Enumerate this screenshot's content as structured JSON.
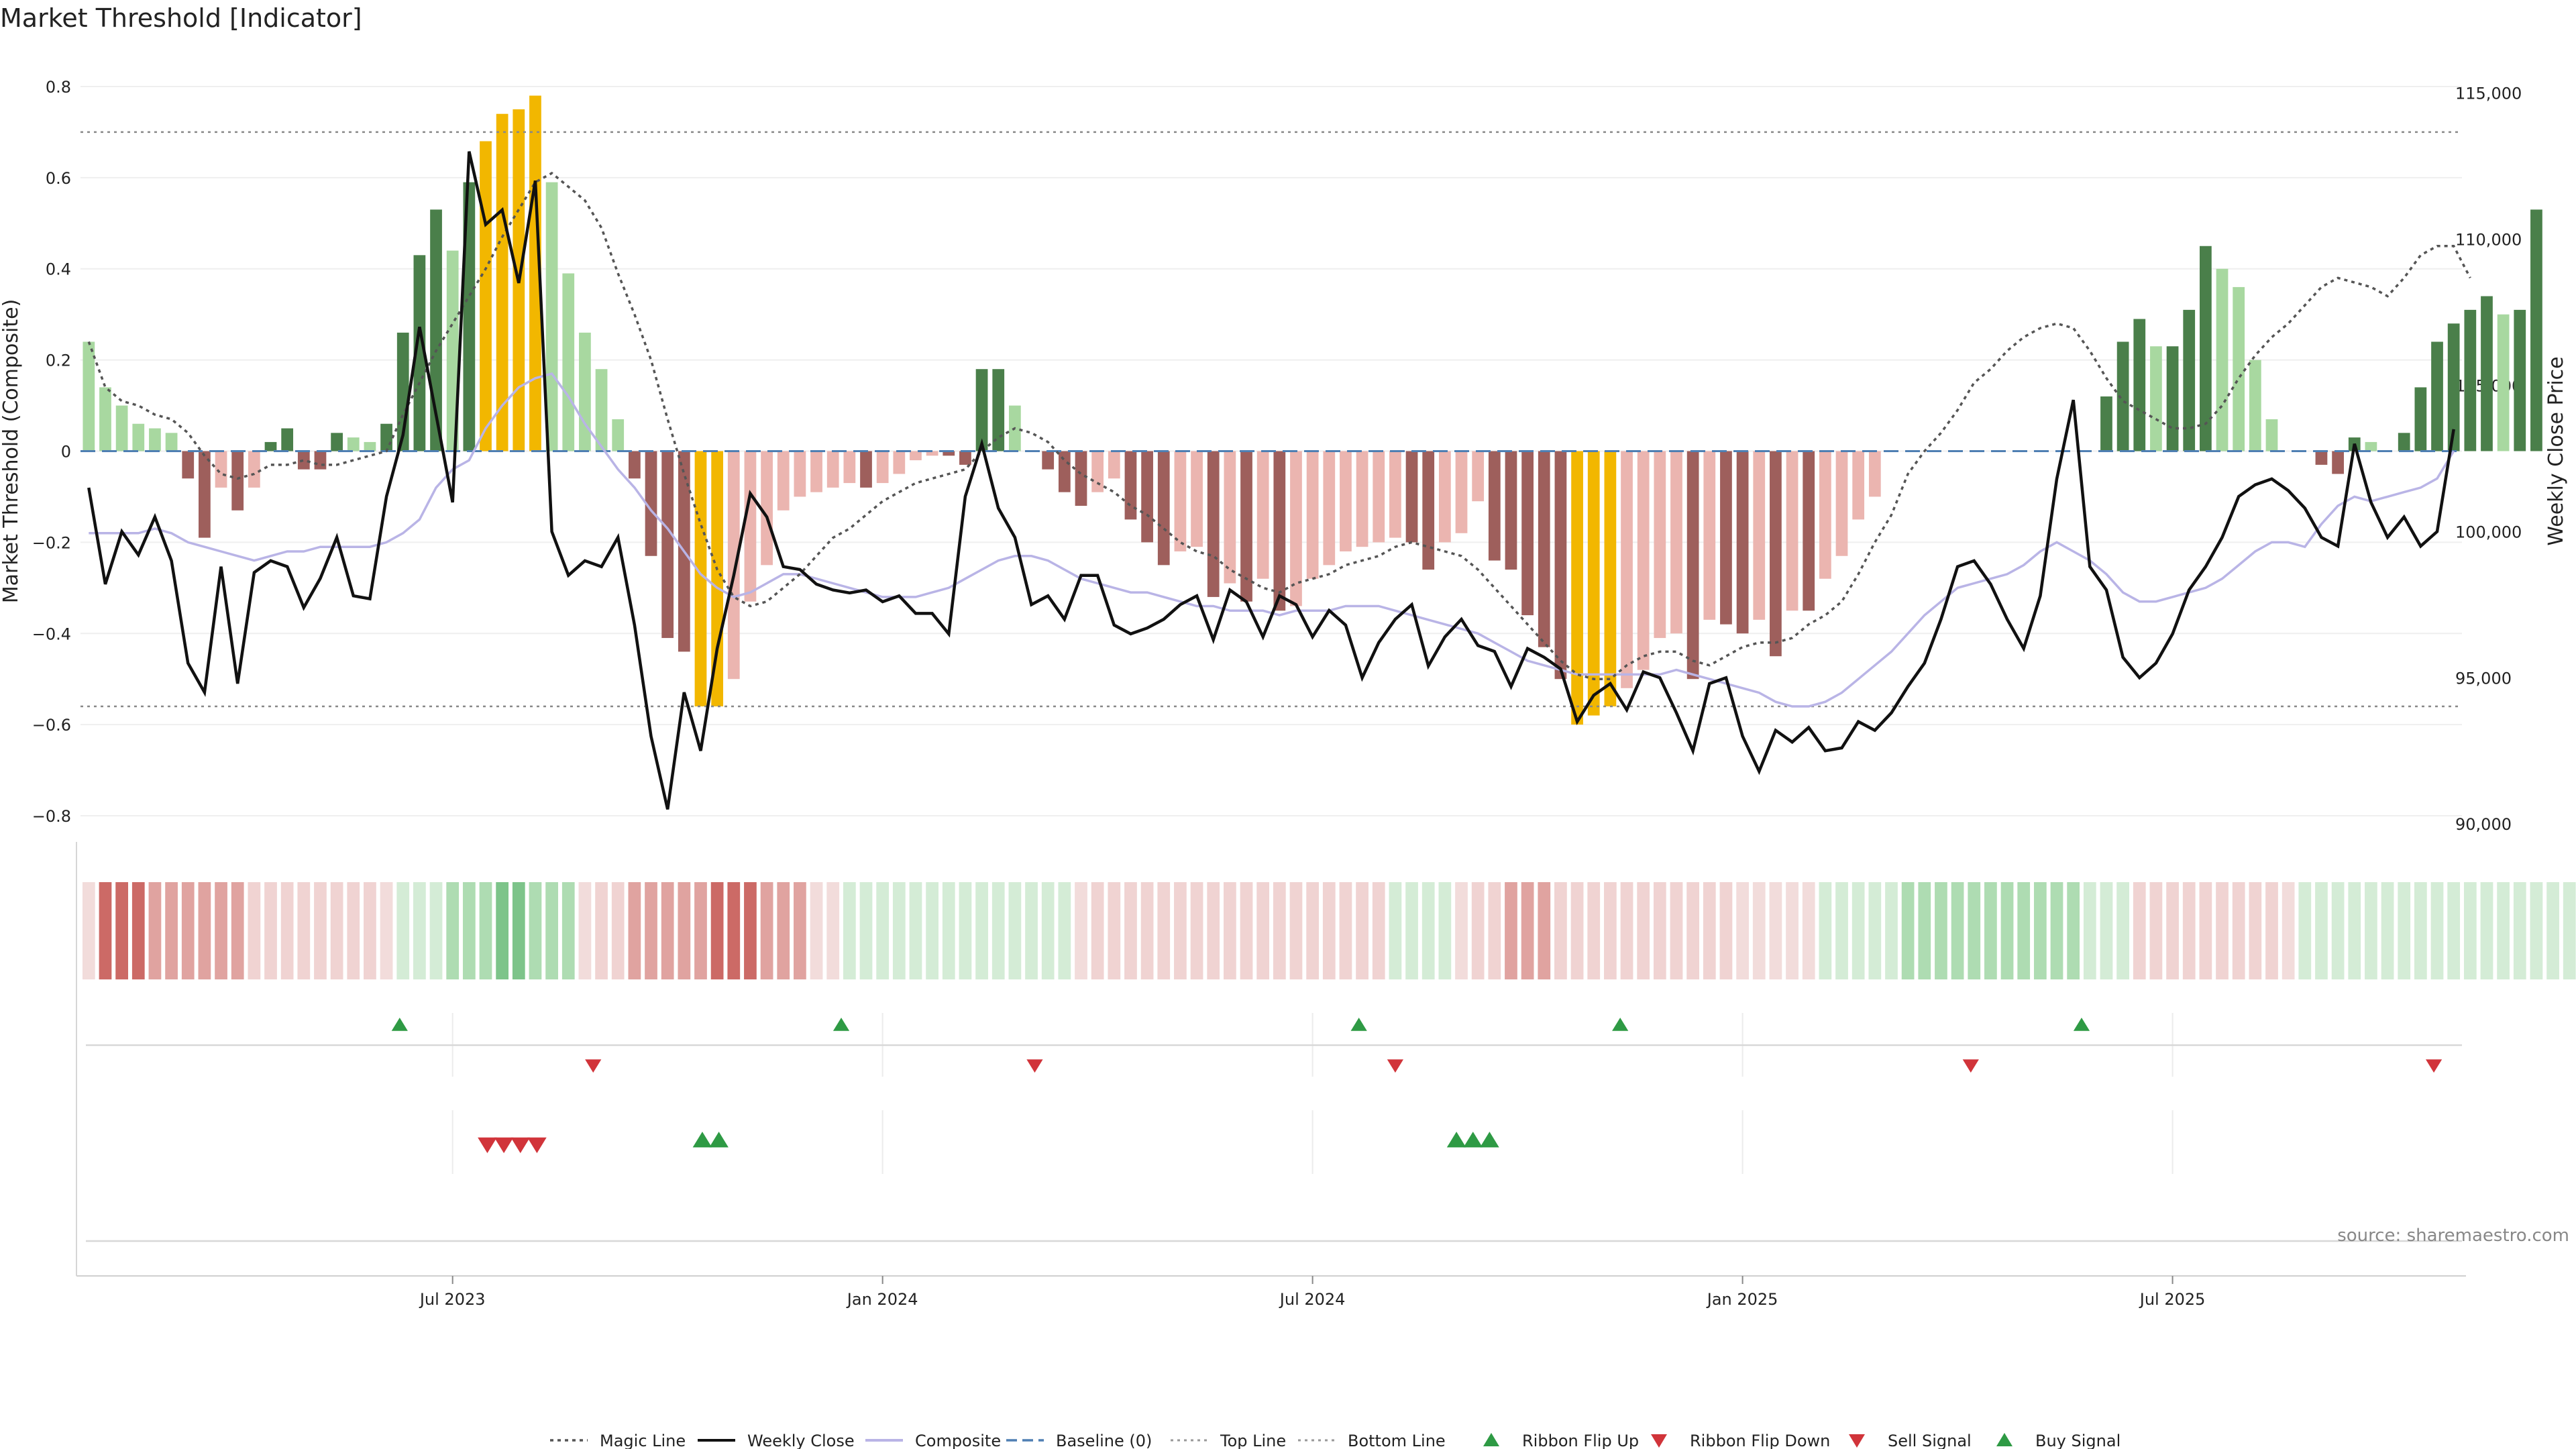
{
  "title": "Market Threshold [Indicator]",
  "source_text": "source: sharemaestro.com",
  "colors": {
    "bull_dark": "#4a7f4a",
    "bull_light": "#a8d8a0",
    "bear_dark": "#9e5f5c",
    "bear_light": "#ebb5b0",
    "extreme": "#f2b700",
    "weekly_close": "#111111",
    "composite": "#b9b4e6",
    "magic": "#555555",
    "baseline": "#4f7fb3",
    "threshold": "#999999",
    "up_marker": "#2e9a44",
    "down_marker": "#d1343a"
  },
  "chart_data": {
    "type": "bar",
    "title": "Market Threshold [Indicator]",
    "ylabel_left": "Market Threshold (Composite)",
    "ylabel_right": "Weekly Close Price",
    "ylim_left": [
      -0.85,
      0.85
    ],
    "ylim_right": [
      89500,
      116000
    ],
    "left_ticks": [
      "0.8",
      "0.6",
      "0.4",
      "0.2",
      "0",
      "−0.2",
      "−0.4",
      "−0.6",
      "−0.8"
    ],
    "left_tick_values": [
      0.8,
      0.6,
      0.4,
      0.2,
      0,
      -0.2,
      -0.4,
      -0.6,
      -0.8
    ],
    "right_ticks": [
      "115,000",
      "110,000",
      "105,000",
      "100,000",
      "95,000",
      "90,000"
    ],
    "right_tick_values": [
      115000,
      110000,
      105000,
      100000,
      95000,
      90000
    ],
    "x_tick_labels": [
      "Jul 2023",
      "Jan 2024",
      "Jul 2024",
      "Jan 2025",
      "Jul 2025"
    ],
    "x_tick_weeks": [
      22,
      48,
      74,
      100,
      126
    ],
    "top_line": 0.7,
    "bottom_line": -0.56,
    "grid": true,
    "legend_position": "bottom",
    "week_count": 144,
    "composite_bars": [
      0.24,
      0.14,
      0.1,
      0.06,
      0.05,
      0.04,
      -0.06,
      -0.19,
      -0.08,
      -0.13,
      -0.08,
      0.02,
      0.05,
      -0.04,
      -0.04,
      0.04,
      0.03,
      0.02,
      0.06,
      0.26,
      0.43,
      0.53,
      0.44,
      0.59,
      0.68,
      0.74,
      0.75,
      0.78,
      0.59,
      0.39,
      0.26,
      0.18,
      0.07,
      -0.06,
      -0.23,
      -0.41,
      -0.44,
      -0.56,
      -0.56,
      -0.5,
      -0.33,
      -0.25,
      -0.13,
      -0.1,
      -0.09,
      -0.08,
      -0.07,
      -0.08,
      -0.07,
      -0.05,
      -0.02,
      -0.01,
      -0.01,
      -0.03,
      0.18,
      0.18,
      0.1,
      0.0,
      -0.04,
      -0.09,
      -0.12,
      -0.09,
      -0.06,
      -0.15,
      -0.2,
      -0.25,
      -0.22,
      -0.21,
      -0.32,
      -0.29,
      -0.33,
      -0.28,
      -0.35,
      -0.34,
      -0.28,
      -0.25,
      -0.22,
      -0.21,
      -0.2,
      -0.19,
      -0.2,
      -0.26,
      -0.2,
      -0.18,
      -0.11,
      -0.24,
      -0.26,
      -0.36,
      -0.43,
      -0.5,
      -0.6,
      -0.58,
      -0.56,
      -0.52,
      -0.48,
      -0.41,
      -0.4,
      -0.5,
      -0.37,
      -0.38,
      -0.4,
      -0.37,
      -0.45,
      -0.35,
      -0.35,
      -0.28,
      -0.23,
      -0.15,
      -0.1,
      0.0,
      0.0,
      0.0,
      0.0,
      0.0,
      0.0,
      0.0,
      0.0,
      0.0,
      0.0,
      0.0,
      0.0,
      0.0,
      0.12,
      0.24,
      0.29,
      0.23,
      0.23,
      0.31,
      0.45,
      0.4,
      0.36,
      0.2,
      0.07,
      0.0,
      0.0,
      -0.03,
      -0.05,
      0.03,
      0.02,
      0.0,
      0.04,
      0.14,
      0.24,
      0.28,
      0.31,
      0.34,
      0.3,
      0.31,
      0.53
    ],
    "weekly_close": [
      101500,
      98200,
      100000,
      99200,
      100500,
      99000,
      95500,
      94500,
      98800,
      94800,
      98600,
      99000,
      98800,
      97400,
      98400,
      99800,
      97800,
      97700,
      101200,
      103300,
      107000,
      104000,
      101000,
      113000,
      110500,
      111000,
      108500,
      112000,
      100000,
      98500,
      99000,
      98800,
      99800,
      96800,
      93000,
      90500,
      94500,
      92500,
      96000,
      98500,
      101300,
      100500,
      98800,
      98700,
      98200,
      98000,
      97900,
      98000,
      97600,
      97800,
      97200,
      97200,
      96500,
      101200,
      103000,
      100800,
      99800,
      97500,
      97800,
      97000,
      98500,
      98500,
      96800,
      96500,
      96700,
      97000,
      97500,
      97800,
      96300,
      98000,
      97600,
      96400,
      97800,
      97500,
      96400,
      97300,
      96800,
      95000,
      96200,
      97000,
      97500,
      95400,
      96400,
      97000,
      96100,
      95900,
      94700,
      96000,
      95700,
      95300,
      93500,
      94400,
      94800,
      93900,
      95200,
      95000,
      93800,
      92500,
      94800,
      95000,
      93000,
      91800,
      93200,
      92800,
      93300,
      92500,
      92600,
      93500,
      93200,
      93800,
      94700,
      95500,
      97000,
      98800,
      99000,
      98200,
      97000,
      96000,
      97800,
      101800,
      104500,
      98800,
      98000,
      95700,
      95000,
      95500,
      96500,
      98000,
      98800,
      99800,
      101200,
      101600,
      101800,
      101400,
      100800,
      99800,
      99500,
      103000,
      101000,
      99800,
      100500,
      99500,
      100000,
      103500
    ],
    "composite_line": [
      -0.18,
      -0.18,
      -0.18,
      -0.18,
      -0.17,
      -0.18,
      -0.2,
      -0.21,
      -0.22,
      -0.23,
      -0.24,
      -0.23,
      -0.22,
      -0.22,
      -0.21,
      -0.21,
      -0.21,
      -0.21,
      -0.2,
      -0.18,
      -0.15,
      -0.08,
      -0.04,
      -0.02,
      0.05,
      0.1,
      0.14,
      0.16,
      0.17,
      0.12,
      0.06,
      0.01,
      -0.04,
      -0.08,
      -0.13,
      -0.17,
      -0.22,
      -0.27,
      -0.3,
      -0.32,
      -0.31,
      -0.29,
      -0.27,
      -0.27,
      -0.28,
      -0.29,
      -0.3,
      -0.31,
      -0.32,
      -0.32,
      -0.32,
      -0.31,
      -0.3,
      -0.28,
      -0.26,
      -0.24,
      -0.23,
      -0.23,
      -0.24,
      -0.26,
      -0.28,
      -0.29,
      -0.3,
      -0.31,
      -0.31,
      -0.32,
      -0.33,
      -0.34,
      -0.34,
      -0.35,
      -0.35,
      -0.35,
      -0.36,
      -0.35,
      -0.35,
      -0.35,
      -0.34,
      -0.34,
      -0.34,
      -0.35,
      -0.36,
      -0.37,
      -0.38,
      -0.39,
      -0.4,
      -0.42,
      -0.44,
      -0.46,
      -0.47,
      -0.48,
      -0.49,
      -0.49,
      -0.49,
      -0.49,
      -0.49,
      -0.49,
      -0.48,
      -0.49,
      -0.5,
      -0.51,
      -0.52,
      -0.53,
      -0.55,
      -0.56,
      -0.56,
      -0.55,
      -0.53,
      -0.5,
      -0.47,
      -0.44,
      -0.4,
      -0.36,
      -0.33,
      -0.3,
      -0.29,
      -0.28,
      -0.27,
      -0.25,
      -0.22,
      -0.2,
      -0.22,
      -0.24,
      -0.27,
      -0.31,
      -0.33,
      -0.33,
      -0.32,
      -0.31,
      -0.3,
      -0.28,
      -0.25,
      -0.22,
      -0.2,
      -0.2,
      -0.21,
      -0.16,
      -0.12,
      -0.1,
      -0.11,
      -0.1,
      -0.09,
      -0.08,
      -0.06,
      0.0
    ],
    "magic_line": [
      0.24,
      0.14,
      0.11,
      0.1,
      0.08,
      0.07,
      0.04,
      -0.01,
      -0.05,
      -0.06,
      -0.05,
      -0.03,
      -0.03,
      -0.02,
      -0.03,
      -0.03,
      -0.02,
      -0.01,
      0.0,
      0.08,
      0.15,
      0.22,
      0.28,
      0.34,
      0.4,
      0.47,
      0.53,
      0.59,
      0.61,
      0.58,
      0.55,
      0.49,
      0.39,
      0.3,
      0.2,
      0.07,
      -0.05,
      -0.16,
      -0.26,
      -0.32,
      -0.34,
      -0.33,
      -0.3,
      -0.27,
      -0.23,
      -0.19,
      -0.17,
      -0.14,
      -0.11,
      -0.09,
      -0.07,
      -0.06,
      -0.05,
      -0.04,
      0.0,
      0.03,
      0.05,
      0.04,
      0.02,
      -0.02,
      -0.05,
      -0.07,
      -0.09,
      -0.12,
      -0.14,
      -0.17,
      -0.2,
      -0.22,
      -0.23,
      -0.26,
      -0.28,
      -0.3,
      -0.31,
      -0.29,
      -0.28,
      -0.27,
      -0.25,
      -0.24,
      -0.23,
      -0.21,
      -0.2,
      -0.21,
      -0.22,
      -0.23,
      -0.26,
      -0.3,
      -0.34,
      -0.38,
      -0.42,
      -0.46,
      -0.49,
      -0.5,
      -0.5,
      -0.47,
      -0.45,
      -0.44,
      -0.44,
      -0.46,
      -0.47,
      -0.45,
      -0.43,
      -0.42,
      -0.42,
      -0.41,
      -0.38,
      -0.36,
      -0.33,
      -0.27,
      -0.2,
      -0.14,
      -0.05,
      0.0,
      0.04,
      0.09,
      0.15,
      0.18,
      0.22,
      0.25,
      0.27,
      0.28,
      0.27,
      0.22,
      0.16,
      0.11,
      0.09,
      0.07,
      0.05,
      0.05,
      0.06,
      0.1,
      0.16,
      0.21,
      0.25,
      0.28,
      0.32,
      0.36,
      0.38,
      0.37,
      0.36,
      0.34,
      0.38,
      0.43,
      0.45,
      0.45,
      0.38
    ],
    "ribbon_levels": [
      0,
      -3,
      -3,
      -3,
      -2,
      -2,
      -2,
      -2,
      -2,
      -2,
      -1,
      -1,
      -1,
      -1,
      -1,
      -1,
      -1,
      -1,
      0,
      1,
      1,
      1,
      2,
      2,
      2,
      3,
      3,
      2,
      2,
      2,
      0,
      -1,
      -1,
      -2,
      -2,
      -2,
      -2,
      -2,
      -3,
      -3,
      -3,
      -2,
      -2,
      -2,
      0,
      0,
      1,
      1,
      1,
      1,
      1,
      1,
      1,
      1,
      1,
      1,
      1,
      1,
      1,
      1,
      0,
      -1,
      -1,
      -1,
      -1,
      -1,
      -1,
      -1,
      -1,
      -1,
      -1,
      -1,
      -1,
      -1,
      -1,
      -1,
      -1,
      -1,
      -1,
      1,
      1,
      1,
      1,
      0,
      -1,
      -1,
      -2,
      -2,
      -2,
      -1,
      -1,
      -1,
      -1,
      -1,
      -1,
      -1,
      -1,
      -1,
      -1,
      -1,
      0,
      0,
      0,
      0,
      0,
      1,
      1,
      1,
      1,
      1,
      2,
      2,
      2,
      2,
      2,
      2,
      2,
      2,
      2,
      2,
      2,
      1,
      1,
      1,
      -1,
      -1,
      -1,
      -1,
      -1,
      -1,
      -1,
      -1,
      -1,
      0,
      1,
      1,
      1,
      1,
      1,
      1,
      1,
      1,
      1,
      1,
      1,
      1,
      1,
      1,
      1,
      1,
      1,
      1,
      1,
      -1
    ],
    "ribbon_flip_up": [
      18.8,
      45.5,
      76.8,
      92.6,
      120.5
    ],
    "ribbon_flip_down": [
      30.5,
      57.2,
      79.0,
      113.8,
      141.8
    ],
    "sell_signals": [
      24.1,
      25.1,
      26.1,
      27.1
    ],
    "buy_signals": [
      37.1,
      38.1,
      82.7,
      83.7,
      84.7
    ]
  },
  "legend": [
    {
      "label": "Magic Line",
      "icon": "dotted-line"
    },
    {
      "label": "Weekly Close",
      "icon": "solid-line"
    },
    {
      "label": "Composite",
      "icon": "light-line"
    },
    {
      "label": "Baseline (0)",
      "icon": "dashed-line"
    },
    {
      "label": "Top Line",
      "icon": "dotted-line-light"
    },
    {
      "label": "Bottom Line",
      "icon": "dotted-line-light"
    },
    {
      "label": "Ribbon Flip Up",
      "icon": "triangle-up"
    },
    {
      "label": "Ribbon Flip Down",
      "icon": "triangle-down"
    },
    {
      "label": "Sell Signal",
      "icon": "triangle-down"
    },
    {
      "label": "Buy Signal",
      "icon": "triangle-up"
    }
  ]
}
